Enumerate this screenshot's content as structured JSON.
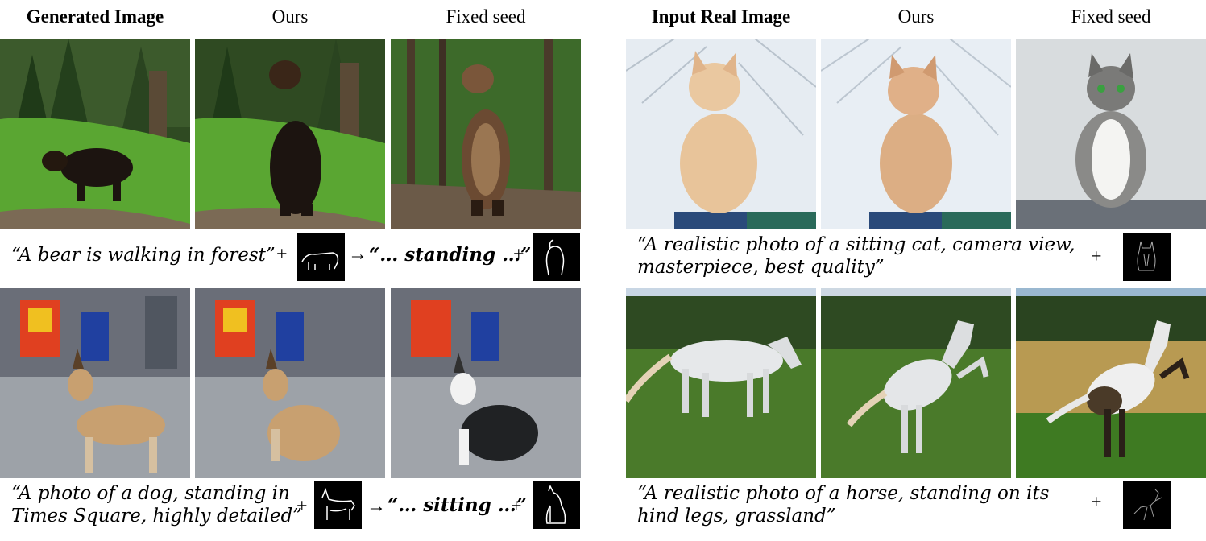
{
  "headers": {
    "left": [
      "Generated Image",
      "Ours",
      "Fixed seed"
    ],
    "right": [
      "Input Real Image",
      "Ours",
      "Fixed seed"
    ]
  },
  "captions": {
    "bear_prompt": "“A bear is walking in forest”",
    "bear_edit": "“… standing …”",
    "dog_prompt_line1": "“A photo of a dog, standing in",
    "dog_prompt_line2": "Times Square, highly detailed”",
    "dog_edit": "“… sitting …”",
    "cat_prompt_line1": "“A realistic photo of a sitting cat, camera view,",
    "cat_prompt_line2": "masterpiece, best quality”",
    "horse_prompt_line1": "“A realistic photo of a horse, standing on its",
    "horse_prompt_line2": "hind legs, grassland”"
  },
  "symbols": {
    "plus": "+",
    "arrow": "→"
  },
  "image_subjects": [
    "bear-walking-generated",
    "bear-standing-ours",
    "bear-standing-fixed-seed",
    "dog-standing-generated",
    "dog-sitting-ours",
    "dog-sitting-fixed-seed",
    "cat-input-real",
    "cat-ours",
    "cat-fixed-seed",
    "horse-input-real",
    "horse-rearing-ours",
    "horse-rearing-fixed-seed"
  ],
  "colors": {
    "forest_green": "#4e8a2a",
    "grass": "#3f7a1e",
    "sky": "#dfe8f0",
    "sketch_bg": "#000000",
    "sketch_line": "#ffffff"
  }
}
